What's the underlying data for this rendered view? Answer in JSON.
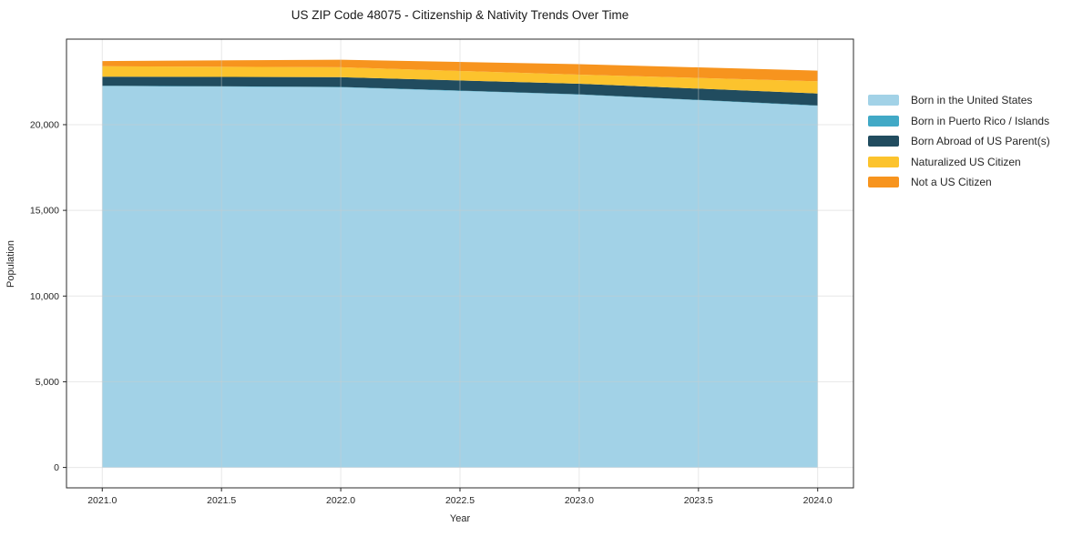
{
  "title": "US ZIP Code 48075 - Citizenship & Nativity Trends Over Time",
  "chart_data": {
    "type": "area",
    "stacked": true,
    "title": "US ZIP Code 48075 - Citizenship & Nativity Trends Over Time",
    "xlabel": "Year",
    "ylabel": "Population",
    "x": [
      2021,
      2022,
      2023,
      2024
    ],
    "series": [
      {
        "name": "Born in the United States",
        "color": "#a2d2e7",
        "values": [
          22250,
          22180,
          21750,
          21100
        ]
      },
      {
        "name": "Born in Puerto Rico / Islands",
        "color": "#41a9c6",
        "values": [
          20,
          20,
          20,
          20
        ]
      },
      {
        "name": "Born Abroad of US Parent(s)",
        "color": "#214c5f",
        "values": [
          530,
          570,
          620,
          700
        ]
      },
      {
        "name": "Naturalized US Citizen",
        "color": "#fcc32d",
        "values": [
          610,
          580,
          530,
          710
        ]
      },
      {
        "name": "Not a US Citizen",
        "color": "#f7941e",
        "values": [
          300,
          440,
          610,
          620
        ]
      }
    ],
    "xlim": [
      2020.85,
      2024.15
    ],
    "ylim": [
      -1190,
      24990
    ],
    "xticks": {
      "values": [
        2021.0,
        2021.5,
        2022.0,
        2022.5,
        2023.0,
        2023.5,
        2024.0
      ],
      "labels": [
        "2021.0",
        "2021.5",
        "2022.0",
        "2022.5",
        "2023.0",
        "2023.5",
        "2024.0"
      ]
    },
    "yticks": {
      "values": [
        0,
        5000,
        10000,
        15000,
        20000
      ],
      "labels": [
        "0",
        "5,000",
        "10,000",
        "15,000",
        "20,000"
      ]
    },
    "grid": true,
    "legend_position": "right",
    "colors": {
      "plot_border": "#2b2b2b",
      "tick": "#262626",
      "gridline": "#cccccc",
      "text": "#262626"
    }
  }
}
